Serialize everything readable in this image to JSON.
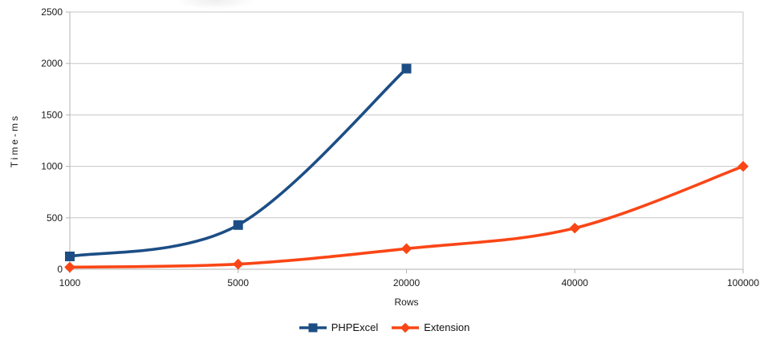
{
  "chart_data": {
    "type": "line",
    "title": "",
    "xlabel": "Rows",
    "ylabel": "Time-ms",
    "categories": [
      "1000",
      "5000",
      "20000",
      "40000",
      "100000"
    ],
    "yticks": [
      0,
      500,
      1000,
      1500,
      2000,
      2500
    ],
    "ylim": [
      0,
      2500
    ],
    "grid": "horizontal",
    "legend_position": "bottom-center",
    "series": [
      {
        "name": "PHPExcel",
        "color": "#1c4e85",
        "marker": "square",
        "values": [
          125,
          430,
          1950,
          null,
          null
        ]
      },
      {
        "name": "Extension",
        "color": "#fa4616",
        "marker": "diamond",
        "values": [
          20,
          50,
          200,
          400,
          1000
        ]
      }
    ]
  },
  "colors": {
    "gridline": "#c6c6c6",
    "axis": "#b3b3b3",
    "tick_text": "#1a1a1a"
  }
}
